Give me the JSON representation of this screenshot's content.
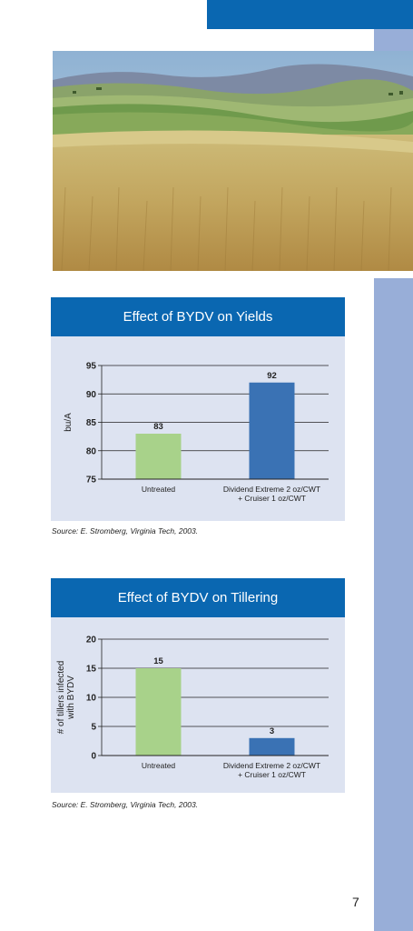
{
  "page": {
    "number": "7"
  },
  "photo": {
    "subject": "wheat-field-landscape"
  },
  "colors": {
    "accent_blue": "#0a67b1",
    "side_band": "#98aed8",
    "panel_bg": "#dde3f1",
    "bar_untreated": "#a8d28a",
    "bar_treated": "#3a72b4"
  },
  "charts": [
    {
      "title": "Effect of BYDV on Yields",
      "source": "Source: E. Stromberg, Virginia Tech, 2003."
    },
    {
      "title": "Effect of BYDV on Tillering",
      "source": "Source: E. Stromberg, Virginia Tech, 2003."
    }
  ],
  "chart_data": [
    {
      "type": "bar",
      "title": "Effect of BYDV on Yields",
      "ylabel": "bu/A",
      "xlabel": "",
      "ylim": [
        75,
        95
      ],
      "yticks": [
        75,
        80,
        85,
        90,
        95
      ],
      "grid": true,
      "categories": [
        [
          "Untreated"
        ],
        [
          "Dividend Extreme 2 oz/CWT",
          "+ Cruiser 1 oz/CWT"
        ]
      ],
      "values": [
        83,
        92
      ],
      "data_labels": [
        "83",
        "92"
      ],
      "bar_colors": [
        "#a8d28a",
        "#3a72b4"
      ]
    },
    {
      "type": "bar",
      "title": "Effect of BYDV on Tillering",
      "ylabel": [
        "# of tillers infected",
        "with BYDV"
      ],
      "xlabel": "",
      "ylim": [
        0,
        20
      ],
      "yticks": [
        0,
        5,
        10,
        15,
        20
      ],
      "grid": true,
      "categories": [
        [
          "Untreated"
        ],
        [
          "Dividend Extreme 2 oz/CWT",
          "+ Cruiser 1 oz/CWT"
        ]
      ],
      "values": [
        15,
        3
      ],
      "data_labels": [
        "15",
        "3"
      ],
      "bar_colors": [
        "#a8d28a",
        "#3a72b4"
      ]
    }
  ]
}
